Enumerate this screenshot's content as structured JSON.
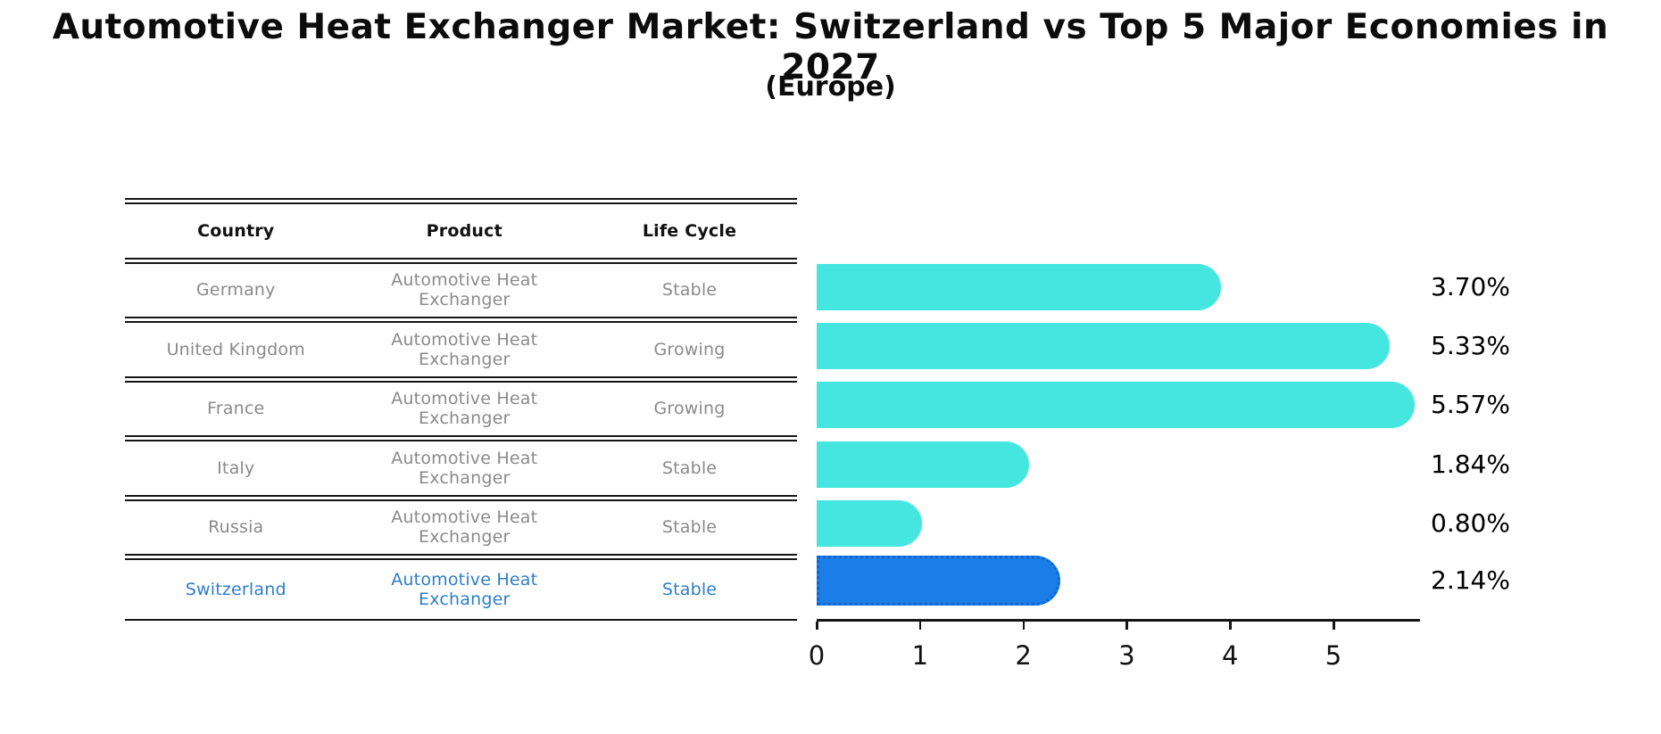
{
  "title": "Automotive Heat Exchanger Market: Switzerland vs Top 5 Major Economies in 2027",
  "subtitle": "(Europe)",
  "table": {
    "headers": [
      "Country",
      "Product",
      "Life Cycle"
    ],
    "rows": [
      {
        "country": "Germany",
        "product": "Automotive Heat Exchanger",
        "life_cycle": "Stable",
        "highlight": false
      },
      {
        "country": "United Kingdom",
        "product": "Automotive Heat Exchanger",
        "life_cycle": "Growing",
        "highlight": false
      },
      {
        "country": "France",
        "product": "Automotive Heat Exchanger",
        "life_cycle": "Growing",
        "highlight": false
      },
      {
        "country": "Italy",
        "product": "Automotive Heat Exchanger",
        "life_cycle": "Stable",
        "highlight": false
      },
      {
        "country": "Russia",
        "product": "Automotive Heat Exchanger",
        "life_cycle": "Stable",
        "highlight": false
      },
      {
        "country": "Switzerland",
        "product": "Automotive Heat Exchanger",
        "life_cycle": "Stable",
        "highlight": true
      }
    ]
  },
  "chart_data": {
    "type": "bar",
    "orientation": "horizontal",
    "title": "Automotive Heat Exchanger Market: Switzerland vs Top 5 Major Economies in 2027",
    "subtitle": "(Europe)",
    "categories": [
      "Germany",
      "United Kingdom",
      "France",
      "Italy",
      "Russia",
      "Switzerland"
    ],
    "values": [
      3.7,
      5.33,
      5.57,
      1.84,
      0.8,
      2.14
    ],
    "value_labels": [
      "3.70%",
      "5.33%",
      "5.57%",
      "1.84%",
      "0.80%",
      "2.14%"
    ],
    "xticks": [
      "0",
      "1",
      "2",
      "3",
      "4",
      "5"
    ],
    "xlim": [
      0,
      5.82
    ],
    "grid": false,
    "legend": false,
    "bar_color": "#45e6e0",
    "highlight_color": "#1b7ee8",
    "highlight_border_color": "#1064ce",
    "highlight_index": 5,
    "highlight_text_color": "#2e7ec8"
  }
}
